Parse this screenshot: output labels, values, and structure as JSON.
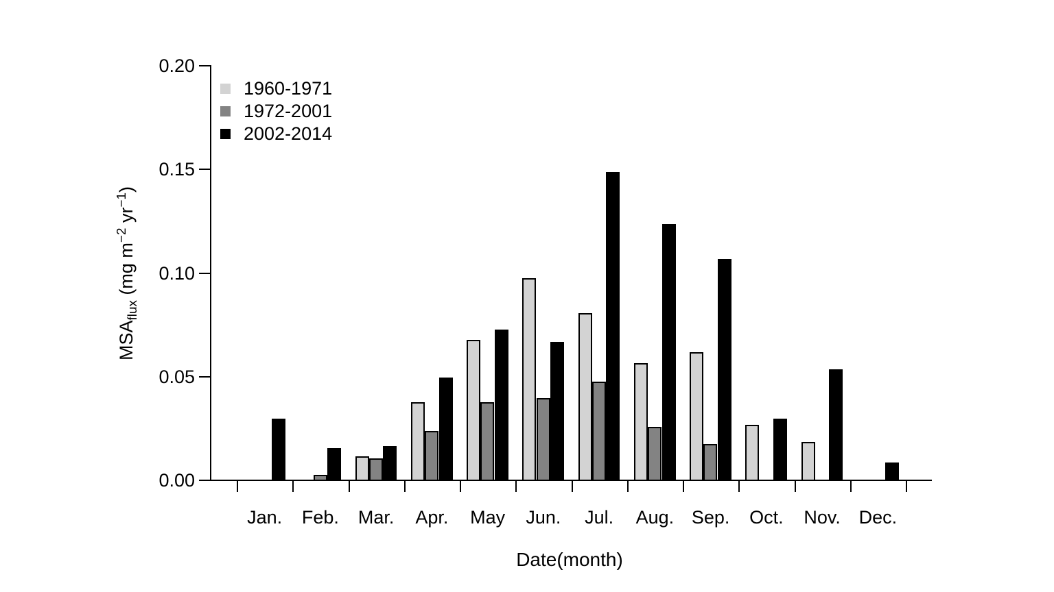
{
  "chart_data": {
    "type": "bar",
    "title": "",
    "xlabel": "Date(month)",
    "ylabel": "MSA_flux (mg m^-2 yr^-1)",
    "ylabel_parts": [
      {
        "t": "MSA",
        "s": "normal"
      },
      {
        "t": "flux",
        "s": "sub"
      },
      {
        "t": " (mg m",
        "s": "normal"
      },
      {
        "t": "−2",
        "s": "sup"
      },
      {
        "t": " yr",
        "s": "normal"
      },
      {
        "t": "−1",
        "s": "sup"
      },
      {
        "t": ")",
        "s": "normal"
      }
    ],
    "categories": [
      "Jan.",
      "Feb.",
      "Mar.",
      "Apr.",
      "May",
      "Jun.",
      "Jul.",
      "Aug.",
      "Sep.",
      "Oct.",
      "Nov.",
      "Dec."
    ],
    "series": [
      {
        "name": "1960-1971",
        "color": "#d3d3d3",
        "values": [
          0,
          0,
          0.012,
          0.038,
          0.068,
          0.098,
          0.081,
          0.057,
          0.062,
          0.027,
          0.019,
          0
        ]
      },
      {
        "name": "1972-2001",
        "color": "#838383",
        "values": [
          0,
          0.003,
          0.011,
          0.024,
          0.038,
          0.04,
          0.048,
          0.026,
          0.018,
          0,
          0,
          0
        ]
      },
      {
        "name": "2002-2014",
        "color": "#000000",
        "values": [
          0.03,
          0.016,
          0.017,
          0.05,
          0.073,
          0.067,
          0.149,
          0.124,
          0.107,
          0.03,
          0.054,
          0.009
        ]
      }
    ],
    "ylim": [
      0,
      0.2
    ],
    "yticks": [
      {
        "value": 0.0,
        "label": "0.00"
      },
      {
        "value": 0.05,
        "label": "0.05"
      },
      {
        "value": 0.1,
        "label": "0.10"
      },
      {
        "value": 0.15,
        "label": "0.15"
      },
      {
        "value": 0.2,
        "label": "0.20"
      }
    ],
    "legend_position": "top-left-inside",
    "grid": false,
    "bar_outline_color": "#000000",
    "background_color": "#ffffff"
  }
}
